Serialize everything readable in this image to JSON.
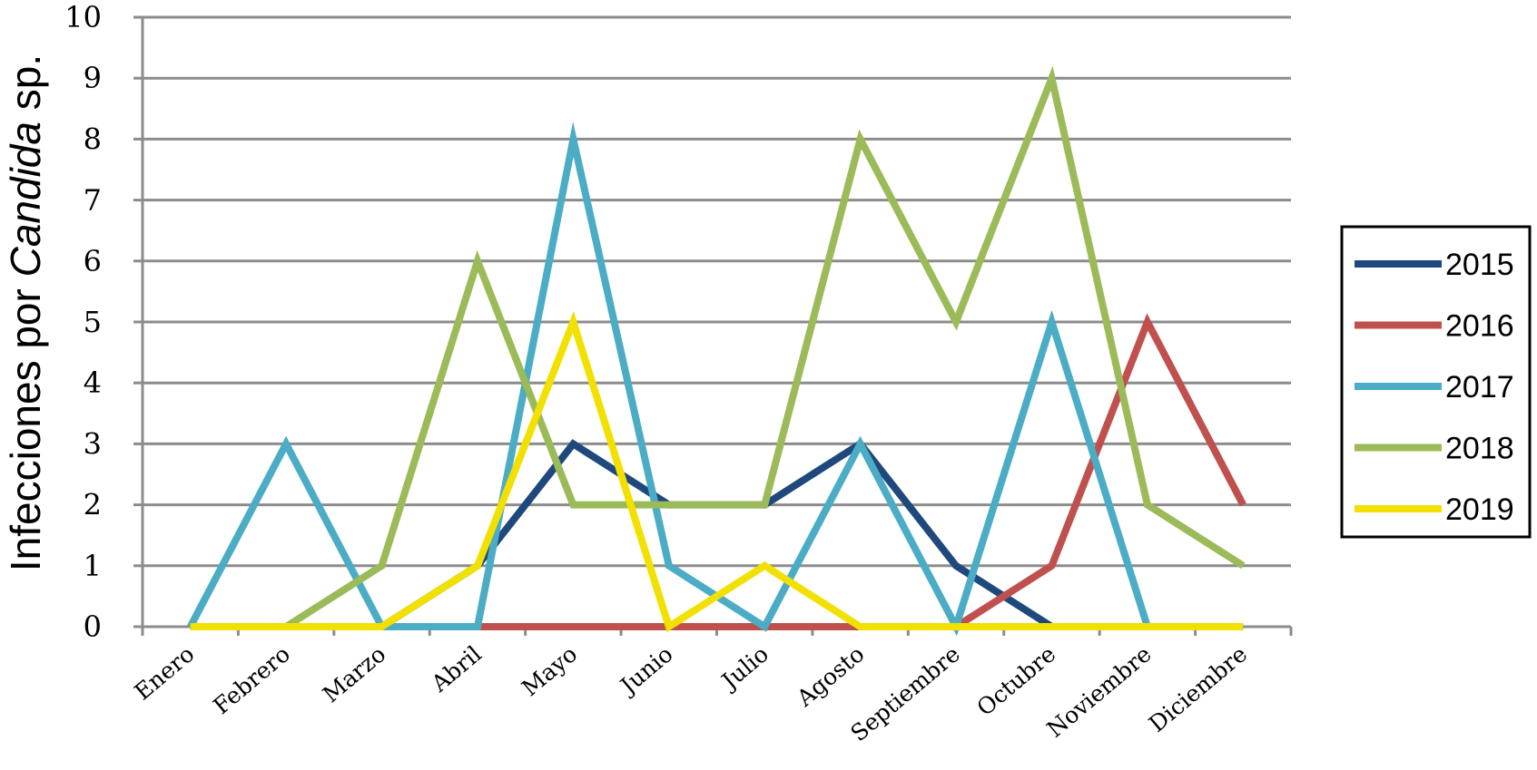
{
  "chart_data": {
    "type": "line",
    "title": "",
    "xlabel": "",
    "ylabel": {
      "prefix": "Infecciones por ",
      "italic": "Candida",
      "suffix": " sp."
    },
    "ylim": [
      0,
      10
    ],
    "yticks": [
      0,
      1,
      2,
      3,
      4,
      5,
      6,
      7,
      8,
      9,
      10
    ],
    "grid": "horizontal",
    "legend_position": "right",
    "categories": [
      "Enero",
      "Febrero",
      "Marzo",
      "Abril",
      "Mayo",
      "Junio",
      "Julio",
      "Agosto",
      "Septiembre",
      "Octubre",
      "Noviembre",
      "Diciembre"
    ],
    "series": [
      {
        "name": "2015",
        "color": "#1F497D",
        "values": [
          0,
          0,
          0,
          1,
          3,
          2,
          2,
          3,
          1,
          0,
          0,
          0
        ]
      },
      {
        "name": "2016",
        "color": "#C0504D",
        "values": [
          0,
          0,
          0,
          0,
          0,
          0,
          0,
          0,
          0,
          1,
          5,
          2
        ]
      },
      {
        "name": "2017",
        "color": "#4BACC6",
        "values": [
          0,
          3,
          0,
          0,
          8,
          1,
          0,
          3,
          0,
          5,
          0,
          0
        ]
      },
      {
        "name": "2018",
        "color": "#9BBB59",
        "values": [
          0,
          0,
          1,
          6,
          2,
          2,
          2,
          8,
          5,
          9,
          2,
          1
        ]
      },
      {
        "name": "2019",
        "color": "#F2E000",
        "values": [
          0,
          0,
          0,
          1,
          5,
          0,
          1,
          0,
          0,
          0,
          0,
          0
        ]
      }
    ],
    "colors": {
      "grid": "#8C8C8C",
      "axis": "#8C8C8C",
      "legend_border": "#000000"
    }
  }
}
